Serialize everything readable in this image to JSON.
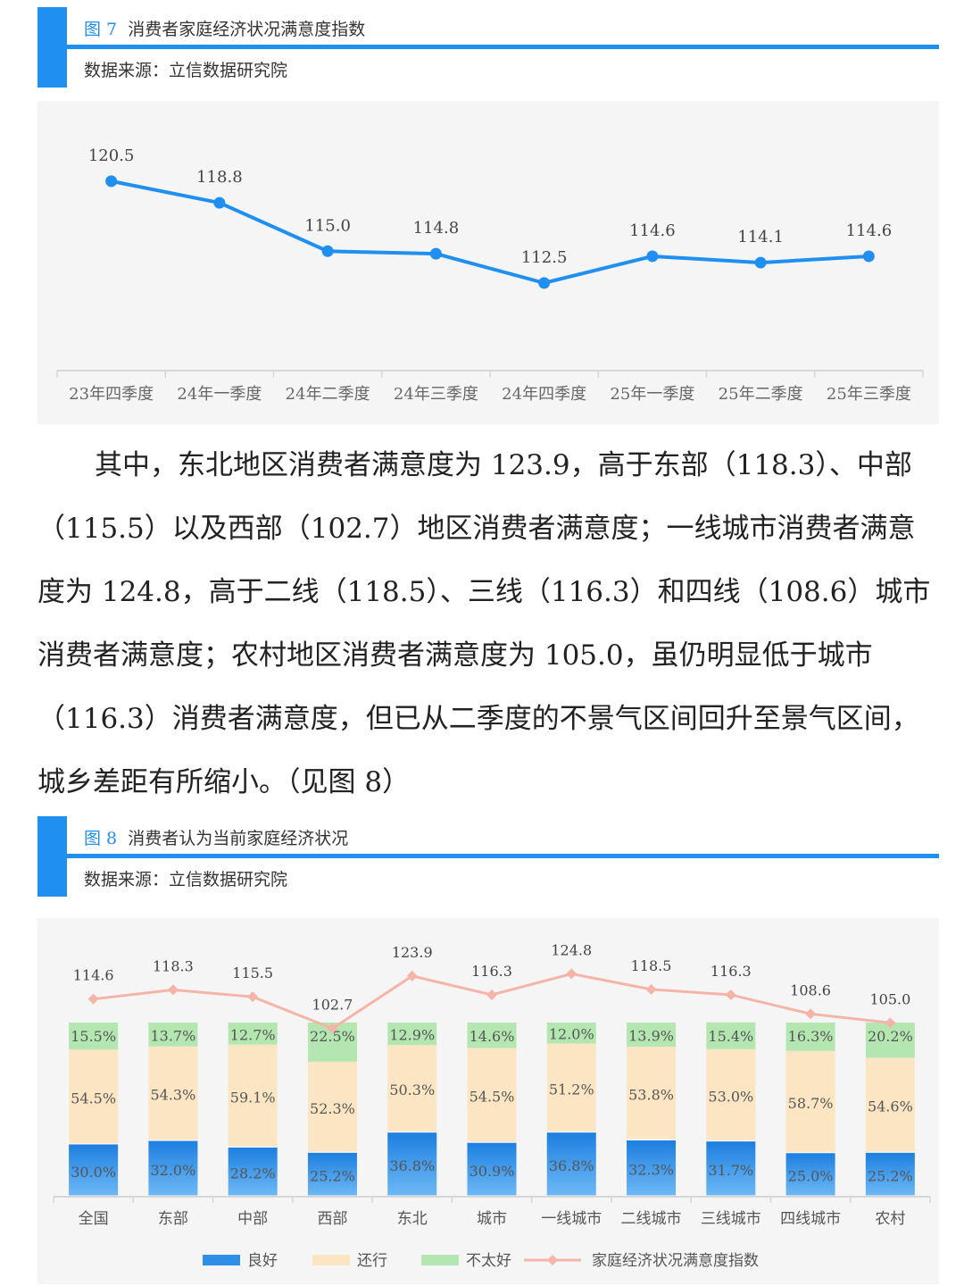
{
  "figure7": {
    "title_num": "图 7",
    "title_text": "消费者家庭经济状况满意度指数",
    "source": "数据来源：立信数据研究院"
  },
  "figure8": {
    "title_num": "图 8",
    "title_text": "消费者认为当前家庭经济状况",
    "source": "数据来源：立信数据研究院"
  },
  "paragraph": "其中，东北地区消费者满意度为 123.9，高于东部（118.3）、中部（115.5）以及西部（102.7）地区消费者满意度；一线城市消费者满意度为 124.8，高于二线（118.5）、三线（116.3）和四线（108.6）城市消费者满意度；农村地区消费者满意度为 105.0，虽仍明显低于城市（116.3）消费者满意度，但已从二季度的不景气区间回升至景气区间，城乡差距有所缩小。（见图 8）",
  "chart_data": [
    {
      "type": "line",
      "categories": [
        "23年四季度",
        "24年一季度",
        "24年二季度",
        "24年三季度",
        "24年四季度",
        "25年一季度",
        "25年二季度",
        "25年三季度"
      ],
      "values": [
        120.5,
        118.8,
        115.0,
        114.8,
        112.5,
        114.6,
        114.1,
        114.6
      ],
      "labels": [
        "120.5",
        "118.8",
        "115.0",
        "114.8",
        "112.5",
        "114.6",
        "114.1",
        "114.6"
      ],
      "ylim": [
        104,
        124
      ],
      "color": "#1f8ff0",
      "grid": false
    },
    {
      "type": "bar",
      "stacked": true,
      "categories": [
        "全国",
        "东部",
        "中部",
        "西部",
        "东北",
        "城市",
        "一线城市",
        "二线城市",
        "三线城市",
        "四线城市",
        "农村"
      ],
      "series": [
        {
          "name": "良好",
          "color": "#2f8fe6",
          "values": [
            30.0,
            32.0,
            28.2,
            25.2,
            36.8,
            30.9,
            36.8,
            32.3,
            31.7,
            25.0,
            25.2
          ],
          "labels": [
            "30.0%",
            "32.0%",
            "28.2%",
            "25.2%",
            "36.8%",
            "30.9%",
            "36.8%",
            "32.3%",
            "31.7%",
            "25.0%",
            "25.2%"
          ]
        },
        {
          "name": "还行",
          "color": "#fbe5c2",
          "values": [
            54.5,
            54.3,
            59.1,
            52.3,
            50.3,
            54.5,
            51.2,
            53.8,
            53.0,
            58.7,
            54.6
          ],
          "labels": [
            "54.5%",
            "54.3%",
            "59.1%",
            "52.3%",
            "50.3%",
            "54.5%",
            "51.2%",
            "53.8%",
            "53.0%",
            "58.7%",
            "54.6%"
          ]
        },
        {
          "name": "不太好",
          "color": "#b3e6b0",
          "values": [
            15.5,
            13.7,
            12.7,
            22.5,
            12.9,
            14.6,
            12.0,
            13.9,
            15.4,
            16.3,
            20.2
          ],
          "labels": [
            "15.5%",
            "13.7%",
            "12.7%",
            "22.5%",
            "12.9%",
            "14.6%",
            "12.0%",
            "13.9%",
            "15.4%",
            "16.3%",
            "20.2%"
          ]
        }
      ],
      "line_series": {
        "name": "家庭经济状况满意度指数",
        "color": "#f4b5a8",
        "values": [
          114.6,
          118.3,
          115.5,
          102.7,
          123.9,
          116.3,
          124.8,
          118.5,
          116.3,
          108.6,
          105.0
        ],
        "labels": [
          "114.6",
          "118.3",
          "115.5",
          "102.7",
          "123.9",
          "116.3",
          "124.8",
          "118.5",
          "116.3",
          "108.6",
          "105.0"
        ]
      },
      "legend_position": "bottom"
    }
  ]
}
